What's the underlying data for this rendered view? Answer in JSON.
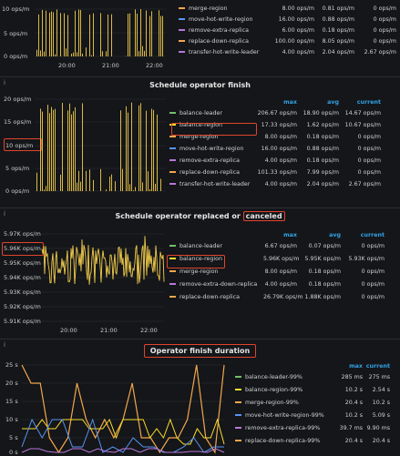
{
  "panels": {
    "top": {
      "y_ticks": [
        "10 ops/m",
        "5 ops/m",
        "0 ops/m"
      ],
      "x_ticks": [
        "20:00",
        "21:00",
        "22:00"
      ],
      "legend": [
        {
          "name": "merge-region",
          "max": "8.00 ops/m",
          "avg": "0.81 ops/m",
          "current": "0 ops/m",
          "color": "#f2a64c"
        },
        {
          "name": "move-hot-write-region",
          "max": "16.00 ops/m",
          "avg": "0.88 ops/m",
          "current": "0 ops/m",
          "color": "#5794f2"
        },
        {
          "name": "remove-extra-replica",
          "max": "6.00 ops/m",
          "avg": "0.18 ops/m",
          "current": "0 ops/m",
          "color": "#b877d9"
        },
        {
          "name": "replace-down-replica",
          "max": "100.00 ops/m",
          "avg": "8.05 ops/m",
          "current": "0 ops/m",
          "color": "#f2a64c"
        },
        {
          "name": "transfer-hot-write-leader",
          "max": "4.00 ops/m",
          "avg": "2.04 ops/m",
          "current": "2.67 ops/m",
          "color": "#b877d9"
        }
      ]
    },
    "finish": {
      "title": "Schedule operator finish",
      "y_ticks": [
        "20 ops/m",
        "15 ops/m",
        "10 ops/m",
        "5 ops/m",
        "0 ops/m"
      ],
      "headers": {
        "max": "max",
        "avg": "avg",
        "current": "current"
      },
      "legend": [
        {
          "name": "balance-leader",
          "max": "206.67 ops/m",
          "avg": "18.90 ops/m",
          "current": "14.67 ops/m",
          "color": "#73bf69"
        },
        {
          "name": "balance-region",
          "max": "17.33 ops/m",
          "avg": "1.62 ops/m",
          "current": "10.67 ops/m",
          "color": "#fade2a"
        },
        {
          "name": "merge-region",
          "max": "8.00 ops/m",
          "avg": "0.18 ops/m",
          "current": "0 ops/m",
          "color": "#f2a64c"
        },
        {
          "name": "move-hot-write-region",
          "max": "16.00 ops/m",
          "avg": "0.88 ops/m",
          "current": "0 ops/m",
          "color": "#5794f2"
        },
        {
          "name": "remove-extra-replica",
          "max": "4.00 ops/m",
          "avg": "0.18 ops/m",
          "current": "0 ops/m",
          "color": "#b877d9"
        },
        {
          "name": "replace-down-replica",
          "max": "101.33 ops/m",
          "avg": "7.99 ops/m",
          "current": "0 ops/m",
          "color": "#f2a64c"
        },
        {
          "name": "transfer-hot-write-leader",
          "max": "4.00 ops/m",
          "avg": "2.04 ops/m",
          "current": "2.67 ops/m",
          "color": "#b877d9"
        }
      ]
    },
    "canceled": {
      "title_prefix": "Schedule operator replaced or",
      "title_highlight": "canceled",
      "y_ticks": [
        "5.97K ops/m",
        "5.96K ops/m",
        "5.95K ops/m",
        "5.94K ops/m",
        "5.93K ops/m",
        "5.92K ops/m",
        "5.91K ops/m"
      ],
      "x_ticks": [
        "20:00",
        "21:00",
        "22:00"
      ],
      "headers": {
        "max": "max",
        "avg": "avg",
        "current": "current"
      },
      "legend": [
        {
          "name": "balance-leader",
          "max": "6.67 ops/m",
          "avg": "0.07 ops/m",
          "current": "0 ops/m",
          "color": "#73bf69"
        },
        {
          "name": "balance-region",
          "max": "5.96K ops/m",
          "avg": "5.95K ops/m",
          "current": "5.93K ops/m",
          "color": "#fade2a"
        },
        {
          "name": "merge-region",
          "max": "8.00 ops/m",
          "avg": "0.18 ops/m",
          "current": "0 ops/m",
          "color": "#f2a64c"
        },
        {
          "name": "remove-extra-down-replica",
          "max": "4.00 ops/m",
          "avg": "0.18 ops/m",
          "current": "0 ops/m",
          "color": "#b877d9"
        },
        {
          "name": "replace-down-replica",
          "max": "26.79K ops/m",
          "avg": "1.88K ops/m",
          "current": "0 ops/m",
          "color": "#f2a64c"
        }
      ]
    },
    "duration": {
      "title": "Operator finish duration",
      "y_ticks": [
        "25 s",
        "20 s",
        "15 s",
        "10 s",
        "5 s",
        "0 s"
      ],
      "headers": {
        "max": "max",
        "current": "current"
      },
      "legend": [
        {
          "name": "balance-leader-99%",
          "max": "285 ms",
          "current": "275 ms",
          "color": "#73bf69"
        },
        {
          "name": "balance-region-99%",
          "max": "10.2 s",
          "current": "2.54 s",
          "color": "#fade2a"
        },
        {
          "name": "merge-region-99%",
          "max": "20.4 s",
          "current": "10.2 s",
          "color": "#f2a64c"
        },
        {
          "name": "move-hot-write-region-99%",
          "max": "10.2 s",
          "current": "5.09 s",
          "color": "#5794f2"
        },
        {
          "name": "remove-extra-replica-99%",
          "max": "39.7 ms",
          "current": "9.90 ms",
          "color": "#b877d9"
        },
        {
          "name": "replace-down-replica-99%",
          "max": "20.4 s",
          "current": "20.4 s",
          "color": "#f2a64c"
        }
      ]
    }
  }
}
